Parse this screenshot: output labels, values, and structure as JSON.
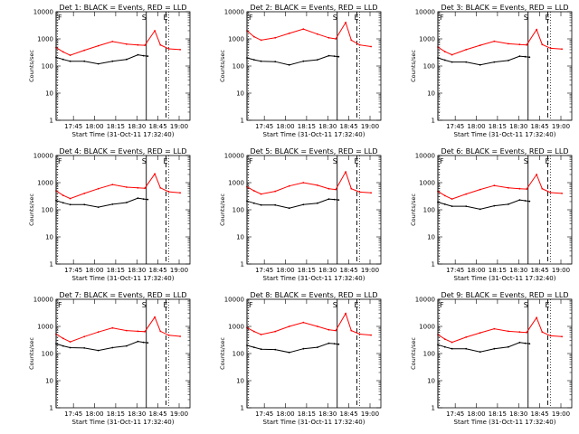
{
  "figure": {
    "xlabel": "Start Time (31-Oct-11 17:32:40)",
    "ylabel": "Counts/sec",
    "marker_labels": [
      "F",
      "S",
      "E"
    ],
    "x_tick_labels": [
      "17:45",
      "18:00",
      "18:15",
      "18:30",
      "18:45",
      "19:00"
    ],
    "y_tick_labels": [
      "1",
      "10",
      "100",
      "1000",
      "10000"
    ]
  },
  "colors": {
    "events": "#000000",
    "lld": "#ff0000",
    "axes": "#000000"
  },
  "chart_data": [
    {
      "type": "line",
      "title": "Det 1: BLACK = Events, RED = LLD",
      "variant": "A",
      "x_unit": "minutes after 17:32:40",
      "ylim": [
        1,
        10000
      ],
      "yscale": "log",
      "series": [
        {
          "name": "BLACK = Events",
          "points": [
            [
              0,
              210
            ],
            [
              5,
              175
            ],
            [
              10,
              150
            ],
            [
              20,
              150
            ],
            [
              30,
              120
            ],
            [
              40,
              150
            ],
            [
              50,
              175
            ],
            [
              58,
              260
            ],
            [
              62,
              240
            ],
            [
              65,
              230
            ]
          ]
        },
        {
          "name": "RED = LLD",
          "points": [
            [
              0,
              480
            ],
            [
              5,
              330
            ],
            [
              10,
              250
            ],
            [
              20,
              380
            ],
            [
              30,
              560
            ],
            [
              40,
              800
            ],
            [
              50,
              640
            ],
            [
              58,
              600
            ],
            [
              63,
              580
            ],
            [
              70,
              2000
            ],
            [
              74,
              600
            ],
            [
              80,
              430
            ],
            [
              88,
              400
            ]
          ]
        }
      ],
      "markers": {
        "F_line": 0,
        "S_line": 64,
        "E_dashed": 78,
        "dotted": [
          1,
          80
        ]
      }
    },
    {
      "type": "line",
      "title": "Det 2: BLACK = Events, RED = LLD",
      "variant": "B",
      "x_unit": "minutes after 17:32:40",
      "ylim": [
        1,
        10000
      ],
      "yscale": "log",
      "series": [
        {
          "name": "BLACK = Events",
          "points": [
            [
              0,
              200
            ],
            [
              5,
              170
            ],
            [
              10,
              150
            ],
            [
              20,
              145
            ],
            [
              30,
              110
            ],
            [
              40,
              150
            ],
            [
              50,
              170
            ],
            [
              58,
              240
            ],
            [
              62,
              230
            ],
            [
              65,
              220
            ]
          ]
        },
        {
          "name": "RED = LLD",
          "points": [
            [
              0,
              2000
            ],
            [
              5,
              1200
            ],
            [
              10,
              900
            ],
            [
              20,
              1100
            ],
            [
              30,
              1600
            ],
            [
              40,
              2300
            ],
            [
              50,
              1500
            ],
            [
              58,
              1100
            ],
            [
              63,
              1000
            ],
            [
              70,
              4000
            ],
            [
              74,
              900
            ],
            [
              80,
              600
            ],
            [
              88,
              520
            ]
          ]
        }
      ],
      "markers": {
        "F_line": 0,
        "S_line": 64,
        "E_dashed": 78,
        "dotted": [
          1,
          80
        ]
      }
    },
    {
      "type": "line",
      "title": "Det 3: BLACK = Events, RED = LLD",
      "variant": "A",
      "x_unit": "minutes after 17:32:40",
      "ylim": [
        1,
        10000
      ],
      "yscale": "log",
      "series": [
        {
          "name": "BLACK = Events",
          "points": [
            [
              0,
              200
            ],
            [
              5,
              165
            ],
            [
              10,
              140
            ],
            [
              20,
              140
            ],
            [
              30,
              110
            ],
            [
              40,
              140
            ],
            [
              50,
              160
            ],
            [
              58,
              230
            ],
            [
              62,
              220
            ],
            [
              65,
              210
            ]
          ]
        },
        {
          "name": "RED = LLD",
          "points": [
            [
              0,
              500
            ],
            [
              5,
              340
            ],
            [
              10,
              260
            ],
            [
              20,
              400
            ],
            [
              30,
              580
            ],
            [
              40,
              820
            ],
            [
              50,
              660
            ],
            [
              58,
              620
            ],
            [
              63,
              600
            ],
            [
              70,
              2200
            ],
            [
              74,
              620
            ],
            [
              80,
              450
            ],
            [
              88,
              420
            ]
          ]
        }
      ],
      "markers": {
        "F_line": 0,
        "S_line": 64,
        "E_dashed": 78,
        "dotted": [
          1,
          80
        ]
      }
    },
    {
      "type": "line",
      "title": "Det 4: BLACK = Events, RED = LLD",
      "variant": "A",
      "x_unit": "minutes after 17:32:40",
      "ylim": [
        1,
        10000
      ],
      "yscale": "log",
      "series": [
        {
          "name": "BLACK = Events",
          "points": [
            [
              0,
              220
            ],
            [
              5,
              180
            ],
            [
              10,
              155
            ],
            [
              20,
              155
            ],
            [
              30,
              125
            ],
            [
              40,
              160
            ],
            [
              50,
              185
            ],
            [
              58,
              270
            ],
            [
              62,
              250
            ],
            [
              65,
              240
            ]
          ]
        },
        {
          "name": "RED = LLD",
          "points": [
            [
              0,
              500
            ],
            [
              5,
              340
            ],
            [
              10,
              260
            ],
            [
              20,
              400
            ],
            [
              30,
              600
            ],
            [
              40,
              850
            ],
            [
              50,
              680
            ],
            [
              58,
              640
            ],
            [
              63,
              620
            ],
            [
              70,
              2100
            ],
            [
              74,
              640
            ],
            [
              80,
              460
            ],
            [
              88,
              420
            ]
          ]
        }
      ],
      "markers": {
        "F_line": 0,
        "S_line": 64,
        "E_dashed": 78,
        "dotted": [
          1,
          80
        ]
      }
    },
    {
      "type": "line",
      "title": "Det 5: BLACK = Events, RED = LLD",
      "variant": "B",
      "x_unit": "minutes after 17:32:40",
      "ylim": [
        1,
        10000
      ],
      "yscale": "log",
      "series": [
        {
          "name": "BLACK = Events",
          "points": [
            [
              0,
              210
            ],
            [
              5,
              175
            ],
            [
              10,
              150
            ],
            [
              20,
              150
            ],
            [
              30,
              115
            ],
            [
              40,
              155
            ],
            [
              50,
              175
            ],
            [
              58,
              250
            ],
            [
              62,
              240
            ],
            [
              65,
              230
            ]
          ]
        },
        {
          "name": "RED = LLD",
          "points": [
            [
              0,
              700
            ],
            [
              5,
              500
            ],
            [
              10,
              380
            ],
            [
              20,
              480
            ],
            [
              30,
              750
            ],
            [
              40,
              1000
            ],
            [
              50,
              800
            ],
            [
              58,
              600
            ],
            [
              63,
              560
            ],
            [
              70,
              2500
            ],
            [
              74,
              600
            ],
            [
              80,
              450
            ],
            [
              88,
              420
            ]
          ]
        }
      ],
      "markers": {
        "F_line": 0,
        "S_line": 64,
        "E_dashed": 78,
        "dotted": [
          1,
          80
        ]
      }
    },
    {
      "type": "line",
      "title": "Det 6: BLACK = Events, RED = LLD",
      "variant": "A",
      "x_unit": "minutes after 17:32:40",
      "ylim": [
        1,
        10000
      ],
      "yscale": "log",
      "series": [
        {
          "name": "BLACK = Events",
          "points": [
            [
              0,
              190
            ],
            [
              5,
              160
            ],
            [
              10,
              135
            ],
            [
              20,
              135
            ],
            [
              30,
              105
            ],
            [
              40,
              140
            ],
            [
              50,
              160
            ],
            [
              58,
              230
            ],
            [
              62,
              215
            ],
            [
              65,
              205
            ]
          ]
        },
        {
          "name": "RED = LLD",
          "points": [
            [
              0,
              480
            ],
            [
              5,
              330
            ],
            [
              10,
              250
            ],
            [
              20,
              380
            ],
            [
              30,
              560
            ],
            [
              40,
              780
            ],
            [
              50,
              640
            ],
            [
              58,
              600
            ],
            [
              63,
              580
            ],
            [
              70,
              2000
            ],
            [
              74,
              600
            ],
            [
              80,
              430
            ],
            [
              88,
              400
            ]
          ]
        }
      ],
      "markers": {
        "F_line": 0,
        "S_line": 64,
        "E_dashed": 78,
        "dotted": [
          1,
          80
        ]
      }
    },
    {
      "type": "line",
      "title": "Det 7: BLACK = Events, RED = LLD",
      "variant": "A",
      "x_unit": "minutes after 17:32:40",
      "ylim": [
        1,
        10000
      ],
      "yscale": "log",
      "series": [
        {
          "name": "BLACK = Events",
          "points": [
            [
              0,
              230
            ],
            [
              5,
              190
            ],
            [
              10,
              165
            ],
            [
              20,
              160
            ],
            [
              30,
              130
            ],
            [
              40,
              165
            ],
            [
              50,
              190
            ],
            [
              58,
              280
            ],
            [
              62,
              260
            ],
            [
              65,
              250
            ]
          ]
        },
        {
          "name": "RED = LLD",
          "points": [
            [
              0,
              520
            ],
            [
              5,
              360
            ],
            [
              10,
              270
            ],
            [
              20,
              420
            ],
            [
              30,
              620
            ],
            [
              40,
              880
            ],
            [
              50,
              700
            ],
            [
              58,
              660
            ],
            [
              63,
              640
            ],
            [
              70,
              2200
            ],
            [
              74,
              660
            ],
            [
              80,
              470
            ],
            [
              88,
              430
            ]
          ]
        }
      ],
      "markers": {
        "F_line": 0,
        "S_line": 64,
        "E_dashed": 78,
        "dotted": [
          1,
          80
        ]
      }
    },
    {
      "type": "line",
      "title": "Det 8: BLACK = Events, RED = LLD",
      "variant": "B",
      "x_unit": "minutes after 17:32:40",
      "ylim": [
        1,
        10000
      ],
      "yscale": "log",
      "series": [
        {
          "name": "BLACK = Events",
          "points": [
            [
              0,
              200
            ],
            [
              5,
              170
            ],
            [
              10,
              145
            ],
            [
              20,
              140
            ],
            [
              30,
              110
            ],
            [
              40,
              150
            ],
            [
              50,
              170
            ],
            [
              58,
              240
            ],
            [
              62,
              230
            ],
            [
              65,
              220
            ]
          ]
        },
        {
          "name": "RED = LLD",
          "points": [
            [
              0,
              900
            ],
            [
              5,
              650
            ],
            [
              10,
              500
            ],
            [
              20,
              650
            ],
            [
              30,
              1000
            ],
            [
              40,
              1400
            ],
            [
              50,
              1000
            ],
            [
              58,
              750
            ],
            [
              63,
              700
            ],
            [
              70,
              3000
            ],
            [
              74,
              700
            ],
            [
              80,
              520
            ],
            [
              88,
              480
            ]
          ]
        }
      ],
      "markers": {
        "F_line": 0,
        "S_line": 64,
        "E_dashed": 78,
        "dotted": [
          1,
          80
        ]
      }
    },
    {
      "type": "line",
      "title": "Det 9: BLACK = Events, RED = LLD",
      "variant": "A",
      "x_unit": "minutes after 17:32:40",
      "ylim": [
        1,
        10000
      ],
      "yscale": "log",
      "series": [
        {
          "name": "BLACK = Events",
          "points": [
            [
              0,
              210
            ],
            [
              5,
              175
            ],
            [
              10,
              150
            ],
            [
              20,
              150
            ],
            [
              30,
              115
            ],
            [
              40,
              150
            ],
            [
              50,
              175
            ],
            [
              58,
              255
            ],
            [
              62,
              240
            ],
            [
              65,
              230
            ]
          ]
        },
        {
          "name": "RED = LLD",
          "points": [
            [
              0,
              500
            ],
            [
              5,
              340
            ],
            [
              10,
              260
            ],
            [
              20,
              400
            ],
            [
              30,
              580
            ],
            [
              40,
              820
            ],
            [
              50,
              660
            ],
            [
              58,
              620
            ],
            [
              63,
              600
            ],
            [
              70,
              2100
            ],
            [
              74,
              620
            ],
            [
              80,
              450
            ],
            [
              88,
              420
            ]
          ]
        }
      ],
      "markers": {
        "F_line": 0,
        "S_line": 64,
        "E_dashed": 78,
        "dotted": [
          1,
          80
        ]
      }
    }
  ]
}
